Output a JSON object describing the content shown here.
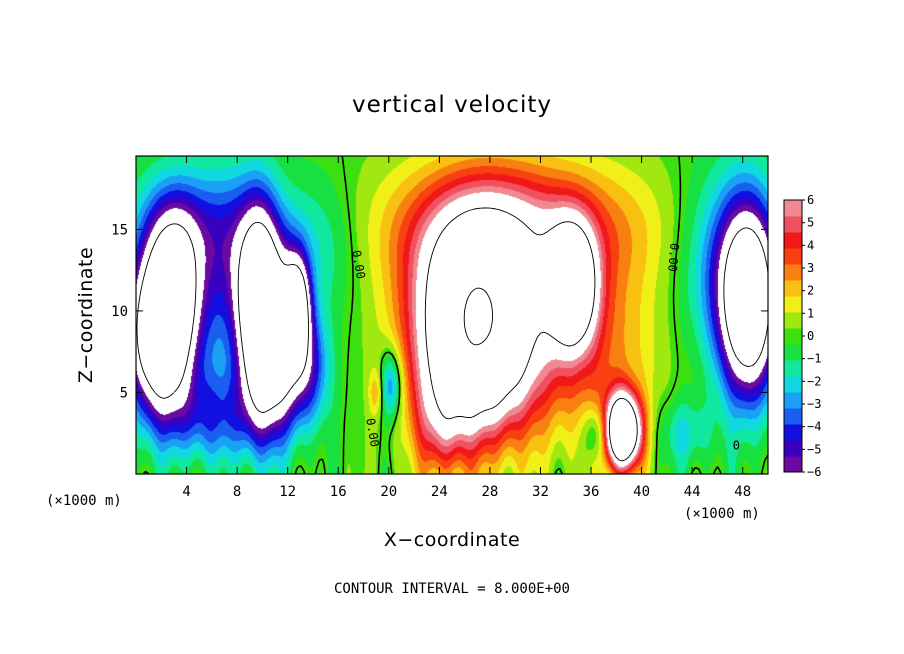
{
  "chart_data": {
    "type": "heatmap",
    "title": "vertical velocity",
    "xlabel": "X−coordinate",
    "ylabel": "Z−coordinate",
    "x_unit_left": "(×1000 m)",
    "x_unit_right": "(×1000 m)",
    "footer": "CONTOUR INTERVAL = 8.000E+00",
    "xlim": [
      0,
      50
    ],
    "ylim": [
      0,
      19.5
    ],
    "x_ticks": [
      4,
      8,
      12,
      16,
      20,
      24,
      28,
      32,
      36,
      40,
      44,
      48
    ],
    "x_tick_labels": [
      "4",
      "8",
      "12",
      "16",
      "20",
      "24",
      "28",
      "32",
      "36",
      "40",
      "44",
      "48"
    ],
    "y_ticks": [
      5,
      10,
      15
    ],
    "y_tick_labels": [
      "5",
      "10",
      "15"
    ],
    "colorbar": {
      "min": -6,
      "max": 6,
      "ticks": [
        6,
        5,
        4,
        3,
        2,
        1,
        0,
        -1,
        -2,
        -3,
        -4,
        -5,
        -6
      ],
      "tick_labels": [
        "6",
        "5",
        "4",
        "3",
        "2",
        "1",
        "0",
        "−1",
        "−2",
        "−3",
        "−4",
        "−5",
        "−6"
      ],
      "colors": [
        "#6a0aa0",
        "#3a00c0",
        "#1010e0",
        "#1a5ef0",
        "#1aa0f5",
        "#10d8e0",
        "#10e8a0",
        "#18e040",
        "#3ce010",
        "#a0e810",
        "#f0f018",
        "#f8c010",
        "#f88010",
        "#f84010",
        "#f01818",
        "#f05060",
        "#f08a90"
      ]
    },
    "contour_labels": [
      "0.00",
      "0.00",
      "0.00",
      "0"
    ],
    "features": [
      {
        "x": 2.0,
        "z": 8.5,
        "w": -13,
        "sx": 1.8,
        "sz": 3.2
      },
      {
        "x": 3.0,
        "z": 12.5,
        "w": -7,
        "sx": 1.6,
        "sz": 3.0
      },
      {
        "x": 4.5,
        "z": 15.5,
        "w": -2.5,
        "sx": 3.5,
        "sz": 2.5
      },
      {
        "x": 8.0,
        "z": 12.0,
        "w": -4,
        "sx": 2.0,
        "sz": 4.0
      },
      {
        "x": 9.8,
        "z": 9.5,
        "w": -13,
        "sx": 1.1,
        "sz": 4.2
      },
      {
        "x": 11.5,
        "z": 8.0,
        "w": -7,
        "sx": 1.0,
        "sz": 3.5
      },
      {
        "x": 12.8,
        "z": 10.2,
        "w": -9,
        "sx": 0.7,
        "sz": 2.2
      },
      {
        "x": 13.5,
        "z": 6.5,
        "w": -5,
        "sx": 1.2,
        "sz": 2.5
      },
      {
        "x": 6.0,
        "z": 3.5,
        "w": -3.5,
        "sx": 3.0,
        "sz": 2.0
      },
      {
        "x": 14.0,
        "z": 14.0,
        "w": -2,
        "sx": 2.5,
        "sz": 3.0
      },
      {
        "x": 20.2,
        "z": 5.5,
        "w": -4,
        "sx": 0.6,
        "sz": 1.5
      },
      {
        "x": 19.0,
        "z": 5.0,
        "w": 2,
        "sx": 0.4,
        "sz": 1.0
      },
      {
        "x": 27.0,
        "z": 9.0,
        "w": 16,
        "sx": 3.3,
        "sz": 4.3
      },
      {
        "x": 34.5,
        "z": 11.5,
        "w": 11,
        "sx": 1.3,
        "sz": 2.5
      },
      {
        "x": 30.0,
        "z": 15.0,
        "w": 5,
        "sx": 7.0,
        "sz": 3.0
      },
      {
        "x": 36.0,
        "z": 7.5,
        "w": 3,
        "sx": 3.5,
        "sz": 4.0
      },
      {
        "x": 24.0,
        "z": 3.0,
        "w": 3,
        "sx": 1.5,
        "sz": 2.5
      },
      {
        "x": 38.5,
        "z": 2.6,
        "w": 14,
        "sx": 1.0,
        "sz": 1.6
      },
      {
        "x": 36.5,
        "z": 2.5,
        "w": -3,
        "sx": 0.7,
        "sz": 1.2
      },
      {
        "x": 48.5,
        "z": 10.5,
        "w": -12,
        "sx": 1.6,
        "sz": 4.0
      },
      {
        "x": 46.5,
        "z": 13.0,
        "w": -3,
        "sx": 2.5,
        "sz": 4.0
      },
      {
        "x": 43.5,
        "z": 2.5,
        "w": -2,
        "sx": 1.5,
        "sz": 1.5
      }
    ]
  }
}
